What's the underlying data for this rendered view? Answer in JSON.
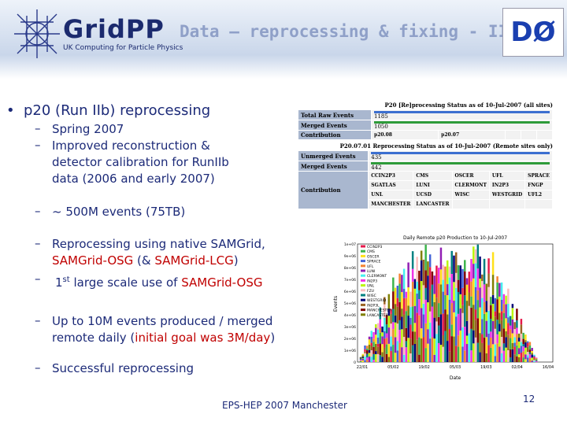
{
  "header": {
    "logo": "GridPP",
    "logo_subtitle": "UK Computing for Particle Physics",
    "title": "Data – reprocessing & fixing - II",
    "experiment_logo": "DØ"
  },
  "bullet": {
    "text": "p20 (Run IIb) reprocessing",
    "items": [
      [
        "Spring 2007"
      ],
      [
        "Improved reconstruction & detector calibration for RunIIb data (2006 and early 2007)"
      ],
      [
        "~ 500M events (75TB)"
      ],
      [
        "Reprocessing using native SAMGrid, ",
        "SAMGrid-OSG",
        " (& ",
        "SAMGrid-LCG",
        ")"
      ],
      [
        "1",
        "st",
        " large scale use of ",
        "SAMGrid-OSG"
      ],
      [
        "Up to 10M events produced / merged remote daily (",
        "initial goal was 3M/day",
        ")"
      ],
      [
        "Successful reprocessing"
      ]
    ]
  },
  "tables": [
    {
      "title": "P20 [Re]processing Status as of 10-Jul-2007 (all sites)",
      "rows": [
        [
          "Total Raw Events",
          "1185"
        ],
        [
          "Merged Events",
          "1050"
        ]
      ],
      "contribution": "Contribution",
      "contributors": [
        "p20.08",
        "p20.07"
      ]
    },
    {
      "title": "P20.07.01 Reprocessing Status as of 10-Jul-2007 (Remote sites only)",
      "rows": [
        [
          "Unmerged Events",
          "435"
        ],
        [
          "Merged Events",
          "442"
        ]
      ],
      "contribution": "Contribution",
      "contributors": [
        "CCIN2P3",
        "CMS",
        "OSCER",
        "UFL",
        "SPRACE",
        "SGATLAS",
        "LUNI",
        "CLERMONT",
        "IN2P3",
        "FNGP",
        "UNL",
        "UCSD",
        "WISC",
        "WESTGRID",
        "UFL2",
        "MANCHESTER",
        "LANCASTER"
      ]
    }
  ],
  "figure": {
    "title": "Daily Remote p20 Production to 10-Jul-2007",
    "y_label": "Events",
    "x_label": "Date",
    "y_ticks": [
      "1e+07",
      "9e+06",
      "8e+06",
      "7e+06",
      "6e+06",
      "5e+06",
      "4e+06",
      "3e+06",
      "2e+06",
      "1e+06",
      "0"
    ],
    "x_ticks": [
      "22/01",
      "05/02",
      "19/02",
      "05/03",
      "19/03",
      "02/04",
      "16/04"
    ],
    "legend": [
      "CCIN2P3",
      "CMS",
      "OSCER",
      "SPRACE",
      "UFL",
      "LUNI",
      "CLERMONT",
      "IN2P3",
      "UNL",
      "FZU",
      "WISC",
      "WESTGRID",
      "IN2P3L",
      "MANCHESTER",
      "LANCASTER"
    ]
  },
  "footer": {
    "text": "EPS-HEP 2007 Manchester",
    "page": "12"
  }
}
